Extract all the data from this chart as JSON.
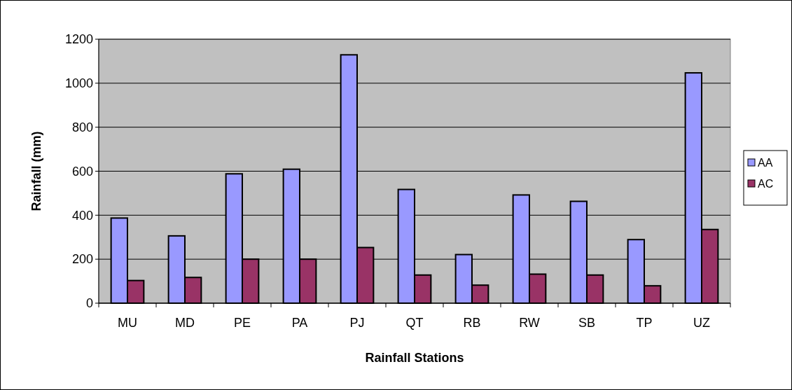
{
  "chart_data": {
    "type": "bar",
    "xlabel": "Rainfall Stations",
    "ylabel": "Rainfall (mm)",
    "categories": [
      "MU",
      "MD",
      "PE",
      "PA",
      "PJ",
      "QT",
      "RB",
      "RW",
      "SB",
      "TP",
      "UZ"
    ],
    "series": [
      {
        "name": "AA",
        "color": "#9999ff",
        "values": [
          387,
          306,
          588,
          609,
          1129,
          517,
          221,
          492,
          463,
          289,
          1047
        ]
      },
      {
        "name": "AC",
        "color": "#993366",
        "values": [
          103,
          117,
          200,
          200,
          253,
          128,
          82,
          132,
          128,
          79,
          335
        ]
      }
    ],
    "ylim": [
      0,
      1200
    ],
    "yticks": [
      0,
      200,
      400,
      600,
      800,
      1000,
      1200
    ],
    "grid": "y",
    "legend": "right"
  }
}
